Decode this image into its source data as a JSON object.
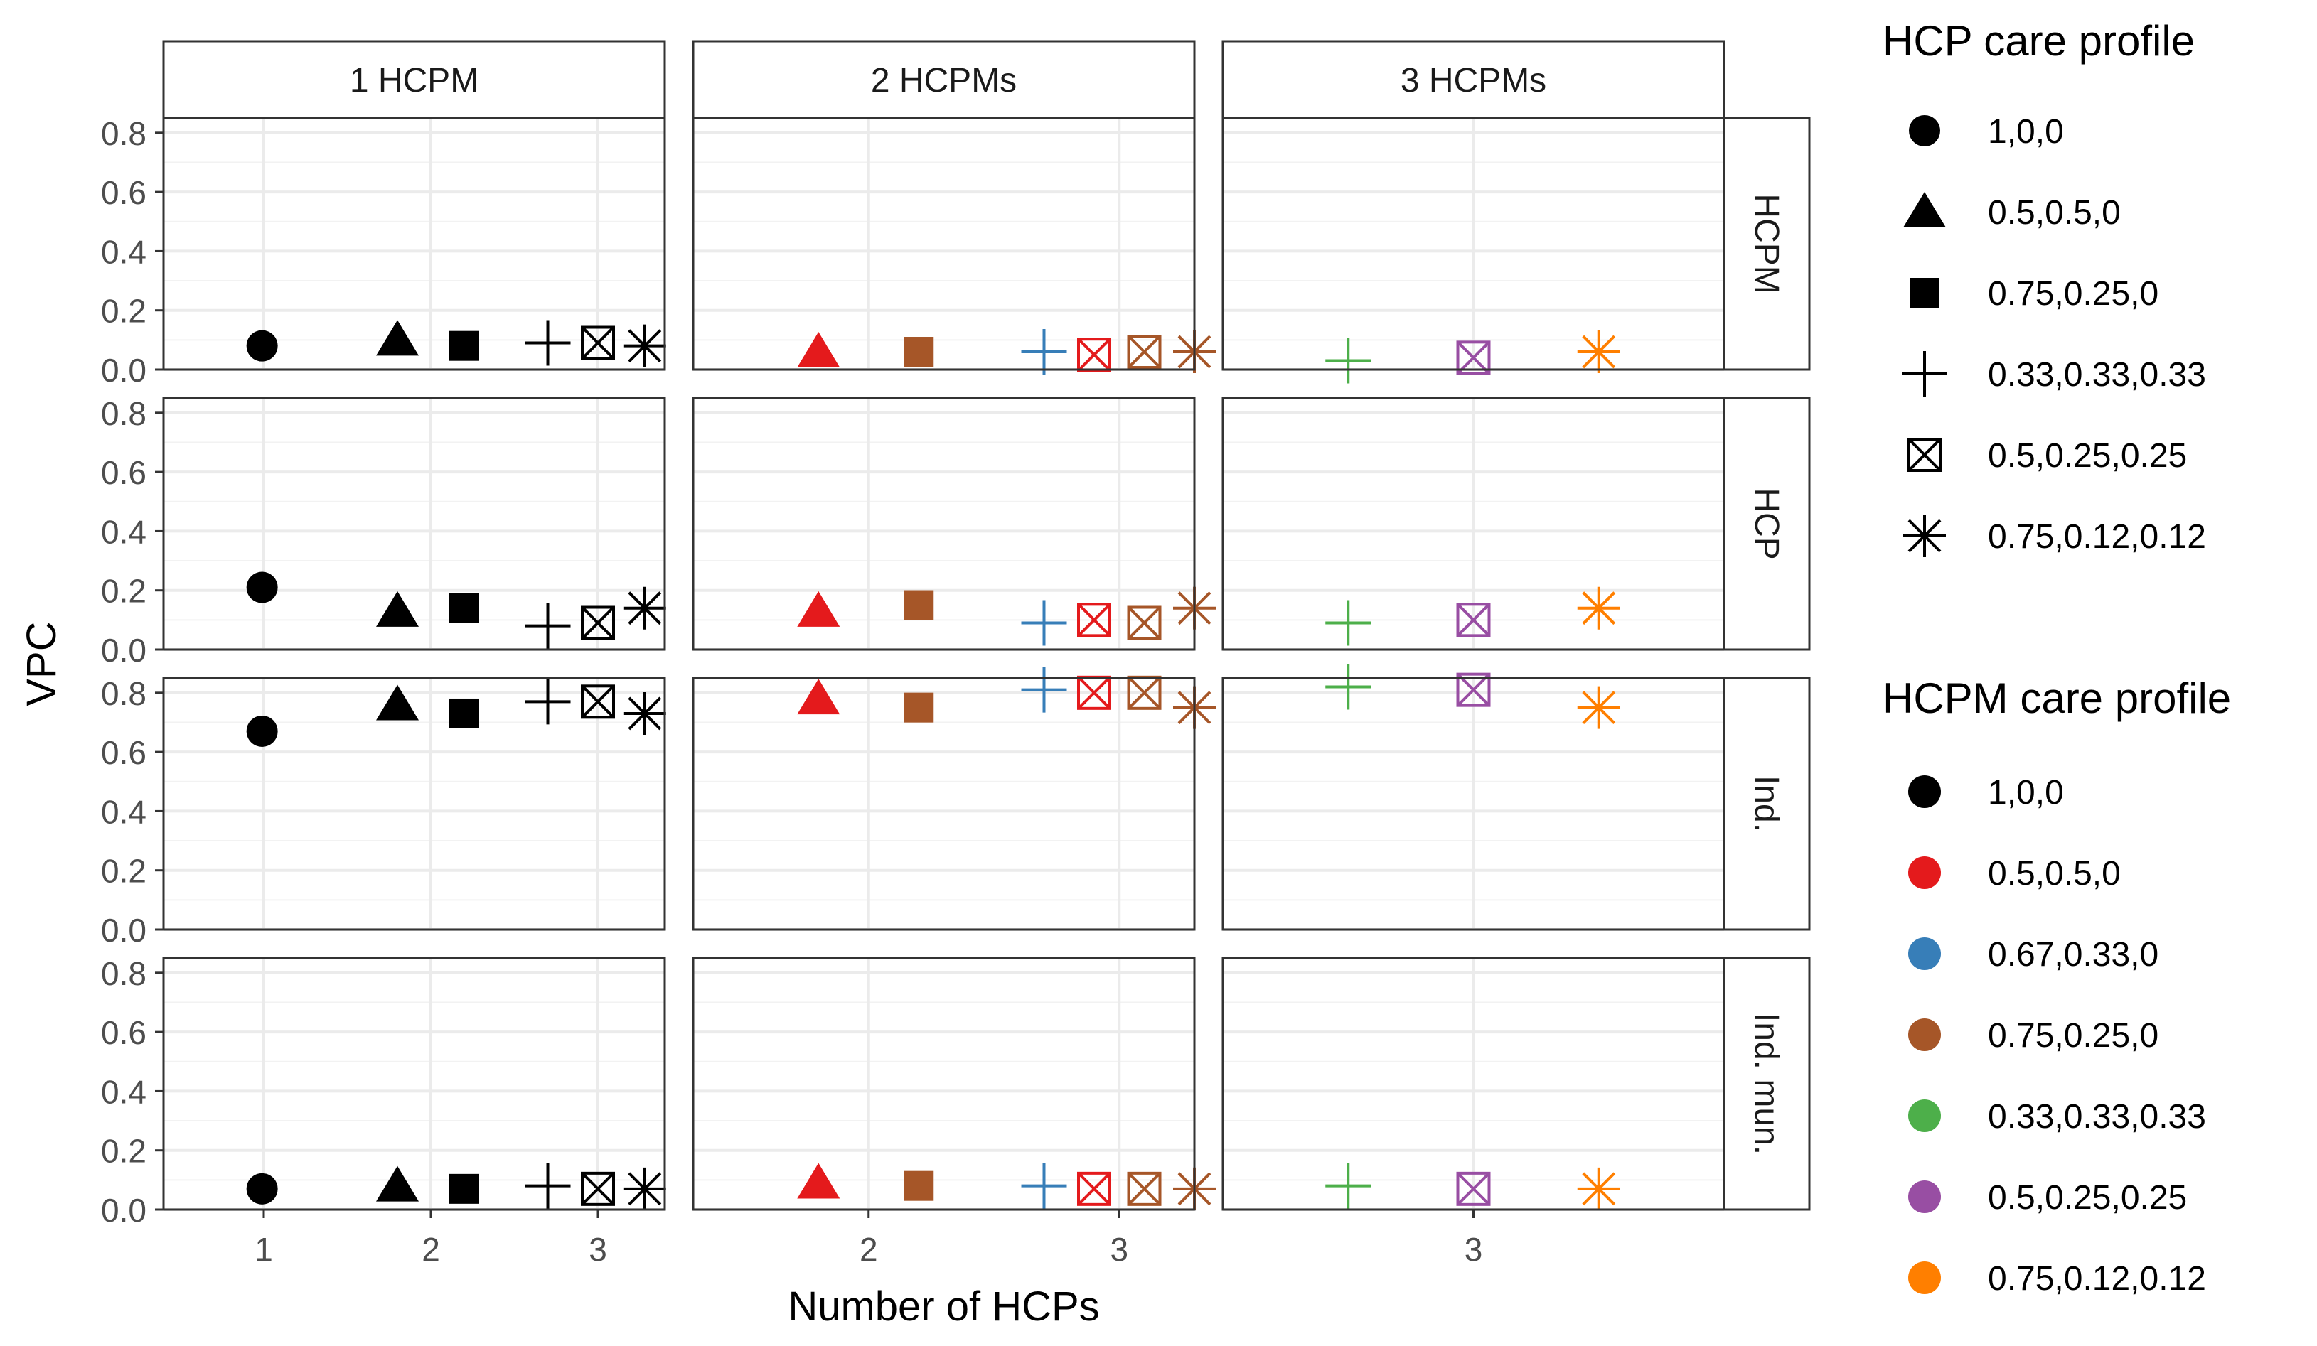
{
  "chart_data": {
    "type": "scatter",
    "facet_columns": [
      "1 HCPM",
      "2 HCPMs",
      "3 HCPMs"
    ],
    "facet_rows": [
      "HCPM",
      "HCP",
      "Ind.",
      "Ind. mun."
    ],
    "xlabel": "Number of HCPs",
    "ylabel": "VPC",
    "ylim": [
      0,
      0.85
    ],
    "y_ticks": [
      "0.0",
      "0.2",
      "0.4",
      "0.6",
      "0.8"
    ],
    "x_ticks": [
      [
        "1",
        "2",
        "3"
      ],
      [
        "2",
        "3"
      ],
      [
        "3"
      ]
    ],
    "x_ranges": [
      [
        0.4,
        3.4
      ],
      [
        1.3,
        3.3
      ],
      [
        2.4,
        3.6
      ]
    ],
    "grid": true,
    "shape_legend": {
      "title": "HCP care profile",
      "entries": [
        {
          "label": "1,0,0",
          "shape": "circle"
        },
        {
          "label": "0.5,0.5,0",
          "shape": "triangle"
        },
        {
          "label": "0.75,0.25,0",
          "shape": "square"
        },
        {
          "label": "0.33,0.33,0.33",
          "shape": "plus"
        },
        {
          "label": "0.5,0.25,0.25",
          "shape": "boxx"
        },
        {
          "label": "0.75,0.12,0.12",
          "shape": "star"
        }
      ]
    },
    "color_legend": {
      "title": "HCPM care profile",
      "entries": [
        {
          "label": "1,0,0",
          "color": "#000000"
        },
        {
          "label": "0.5,0.5,0",
          "color": "#E41A1C"
        },
        {
          "label": "0.67,0.33,0",
          "color": "#377EB8"
        },
        {
          "label": "0.75,0.25,0",
          "color": "#A65628"
        },
        {
          "label": "0.33,0.33,0.33",
          "color": "#4DAF4A"
        },
        {
          "label": "0.5,0.25,0.25",
          "color": "#984EA3"
        },
        {
          "label": "0.75,0.12,0.12",
          "color": "#FF7F00"
        }
      ]
    },
    "point_columns": [
      [
        {
          "x": 0.99,
          "shape": "circle",
          "color": "#000000"
        },
        {
          "x": 1.8,
          "shape": "triangle",
          "color": "#000000"
        },
        {
          "x": 2.2,
          "shape": "square",
          "color": "#000000"
        },
        {
          "x": 2.7,
          "shape": "plus",
          "color": "#000000"
        },
        {
          "x": 3.0,
          "shape": "boxx",
          "color": "#000000"
        },
        {
          "x": 3.28,
          "shape": "star",
          "color": "#000000"
        }
      ],
      [
        {
          "x": 1.8,
          "shape": "triangle",
          "color": "#E41A1C"
        },
        {
          "x": 2.2,
          "shape": "square",
          "color": "#A65628"
        },
        {
          "x": 2.7,
          "shape": "plus",
          "color": "#377EB8"
        },
        {
          "x": 2.9,
          "shape": "boxx",
          "color": "#E41A1C"
        },
        {
          "x": 3.1,
          "shape": "boxx",
          "color": "#A65628"
        },
        {
          "x": 3.3,
          "shape": "star",
          "color": "#A65628"
        }
      ],
      [
        {
          "x": 2.7,
          "shape": "plus",
          "color": "#4DAF4A"
        },
        {
          "x": 3.0,
          "shape": "boxx",
          "color": "#984EA3"
        },
        {
          "x": 3.3,
          "shape": "star",
          "color": "#FF7F00"
        }
      ]
    ],
    "values": {
      "HCPM": [
        [
          0.08,
          0.1,
          0.08,
          0.09,
          0.09,
          0.08
        ],
        [
          0.06,
          0.06,
          0.06,
          0.05,
          0.06,
          0.06
        ],
        [
          0.03,
          0.04,
          0.06
        ]
      ],
      "HCP": [
        [
          0.21,
          0.13,
          0.14,
          0.08,
          0.09,
          0.14
        ],
        [
          0.13,
          0.15,
          0.09,
          0.1,
          0.09,
          0.14
        ],
        [
          0.09,
          0.1,
          0.14
        ]
      ],
      "Ind.": [
        [
          0.67,
          0.76,
          0.73,
          0.77,
          0.77,
          0.73
        ],
        [
          0.78,
          0.75,
          0.81,
          0.8,
          0.8,
          0.75
        ],
        [
          0.82,
          0.81,
          0.75
        ]
      ],
      "Ind. mun.": [
        [
          0.07,
          0.08,
          0.07,
          0.08,
          0.07,
          0.07
        ],
        [
          0.09,
          0.08,
          0.08,
          0.07,
          0.07,
          0.07
        ],
        [
          0.08,
          0.07,
          0.07
        ]
      ]
    }
  }
}
